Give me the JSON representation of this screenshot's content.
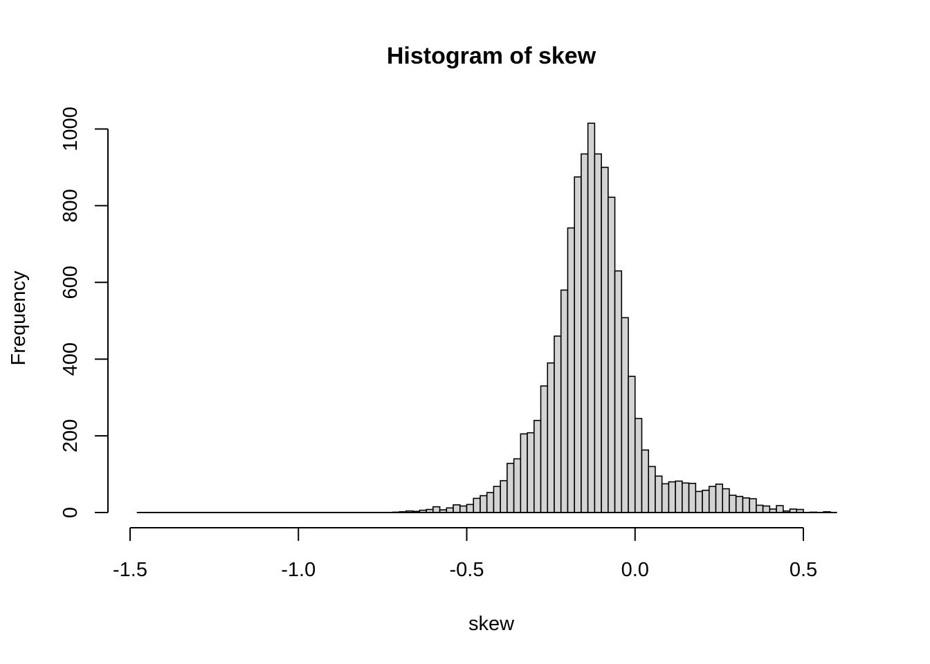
{
  "chart_data": {
    "type": "bar",
    "title": "Histogram of skew",
    "xlabel": "skew",
    "ylabel": "Frequency",
    "xlim": [
      -1.5,
      0.6
    ],
    "ylim": [
      0,
      1000
    ],
    "x_ticks": [
      "-1.5",
      "-1.0",
      "-0.5",
      "0.0",
      "0.5"
    ],
    "y_ticks": [
      "0",
      "200",
      "400",
      "600",
      "800",
      "1000"
    ],
    "grid": false,
    "bin_width": 0.02,
    "bins_start": -1.48,
    "bin_left_edges": [
      -0.72,
      -0.7,
      -0.68,
      -0.66,
      -0.64,
      -0.62,
      -0.6,
      -0.58,
      -0.56,
      -0.54,
      -0.52,
      -0.5,
      -0.48,
      -0.46,
      -0.44,
      -0.42,
      -0.4,
      -0.38,
      -0.36,
      -0.34,
      -0.32,
      -0.3,
      -0.28,
      -0.26,
      -0.24,
      -0.22,
      -0.2,
      -0.18,
      -0.16,
      -0.14,
      -0.12,
      -0.1,
      -0.08,
      -0.06,
      -0.04,
      -0.02,
      0.0,
      0.02,
      0.04,
      0.06,
      0.08,
      0.1,
      0.12,
      0.14,
      0.16,
      0.18,
      0.2,
      0.22,
      0.24,
      0.26,
      0.28,
      0.3,
      0.32,
      0.34,
      0.36,
      0.38,
      0.4,
      0.42,
      0.44,
      0.46,
      0.48,
      0.5,
      0.52,
      0.54,
      0.56,
      0.58
    ],
    "counts": [
      1,
      2,
      4,
      3,
      6,
      8,
      15,
      7,
      12,
      20,
      17,
      21,
      37,
      44,
      52,
      68,
      83,
      128,
      140,
      205,
      208,
      240,
      330,
      390,
      460,
      580,
      742,
      875,
      935,
      1015,
      935,
      900,
      822,
      630,
      508,
      355,
      245,
      163,
      120,
      95,
      75,
      80,
      82,
      77,
      76,
      55,
      58,
      68,
      74,
      62,
      45,
      42,
      38,
      36,
      19,
      17,
      9,
      18,
      4,
      9,
      8,
      0,
      1,
      0,
      2,
      0
    ]
  }
}
